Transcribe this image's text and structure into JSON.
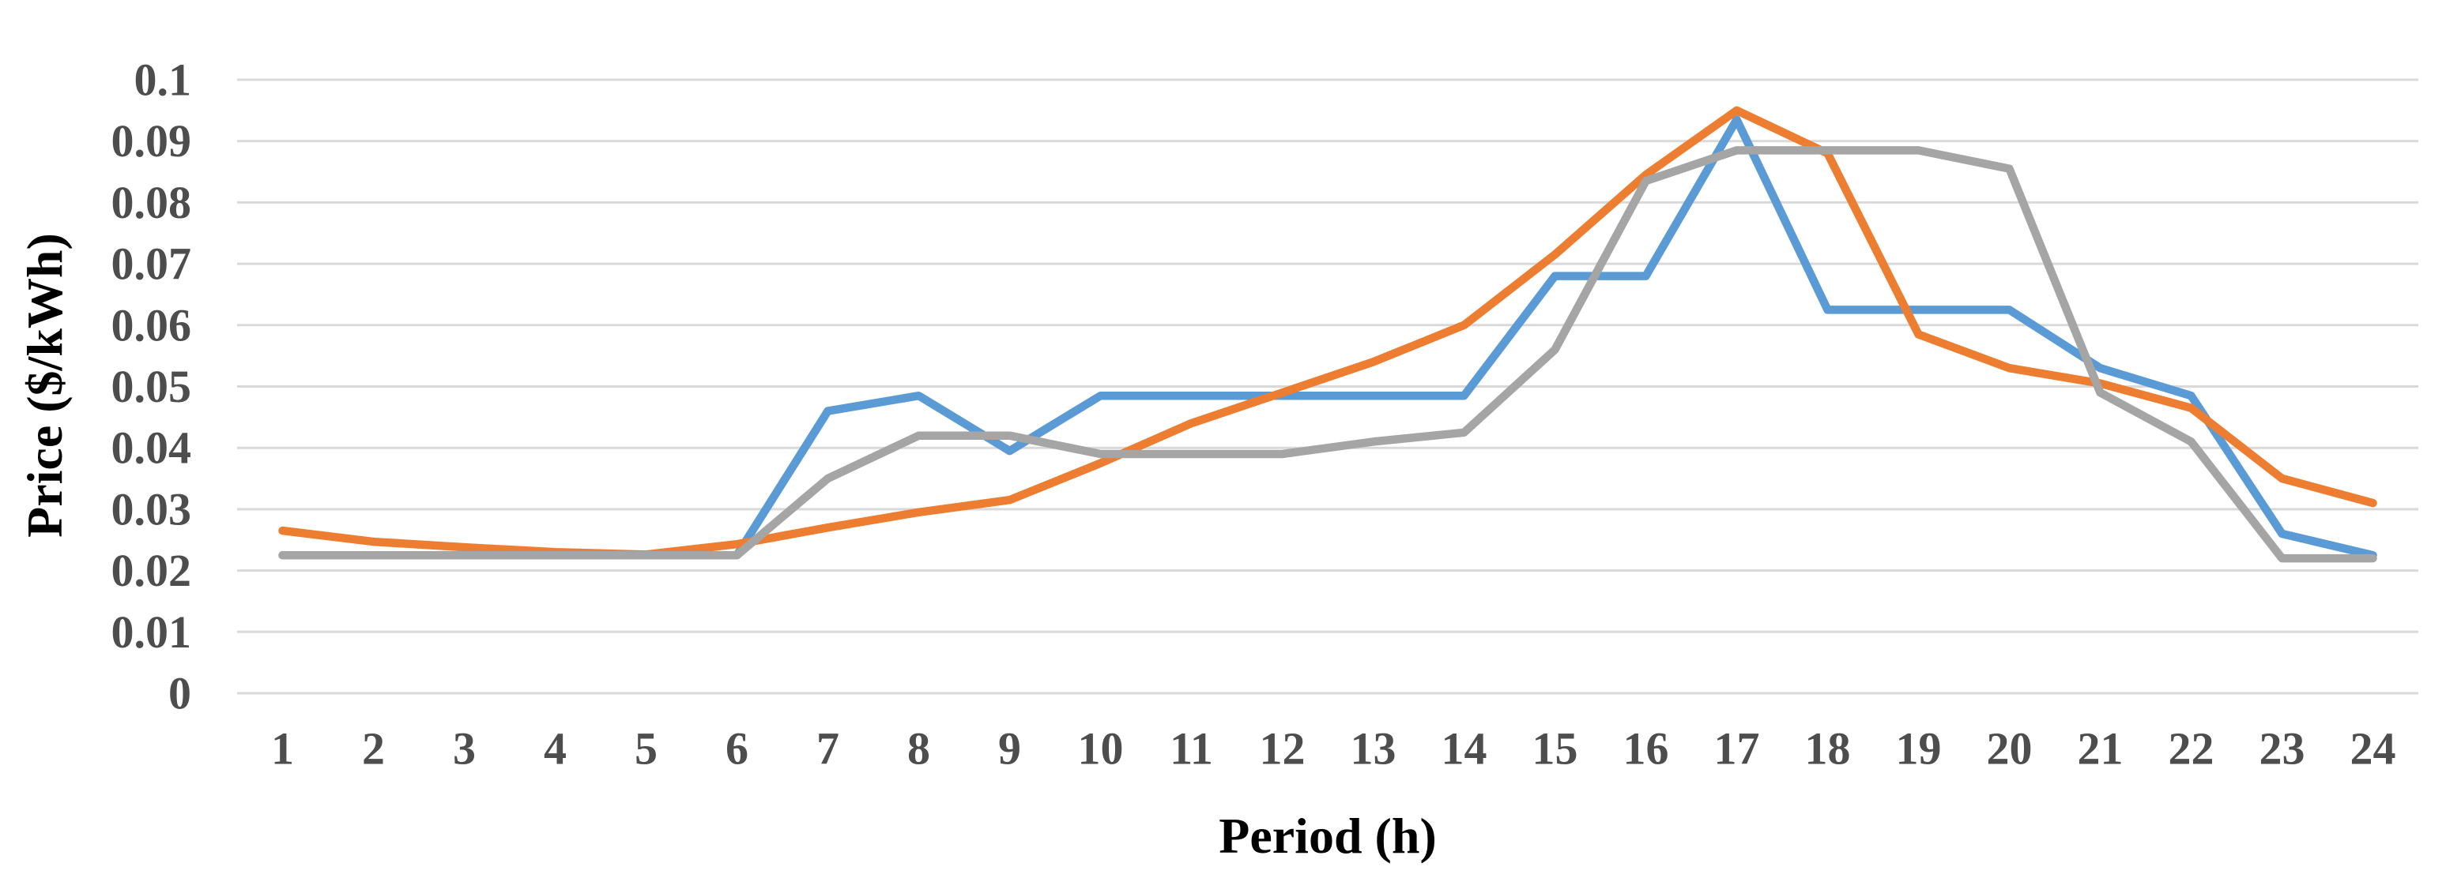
{
  "chart_data": {
    "type": "line",
    "title": "",
    "xlabel": "Period (h)",
    "ylabel": "Price ($/kWh)",
    "categories": [
      1,
      2,
      3,
      4,
      5,
      6,
      7,
      8,
      9,
      10,
      11,
      12,
      13,
      14,
      15,
      16,
      17,
      18,
      19,
      20,
      21,
      22,
      23,
      24
    ],
    "x_tick_labels": [
      "1",
      "2",
      "3",
      "4",
      "5",
      "6",
      "7",
      "8",
      "9",
      "10",
      "11",
      "12",
      "13",
      "14",
      "15",
      "16",
      "17",
      "18",
      "19",
      "20",
      "21",
      "22",
      "23",
      "24"
    ],
    "ylim": [
      0,
      0.1
    ],
    "ytick_interval": 0.01,
    "ytick_values": [
      0,
      0.01,
      0.02,
      0.03,
      0.04,
      0.05,
      0.06,
      0.07,
      0.08,
      0.09,
      0.1
    ],
    "ytick_labels": [
      "0",
      "0.01",
      "0.02",
      "0.03",
      "0.04",
      "0.05",
      "0.06",
      "0.07",
      "0.08",
      "0.09",
      "0.1"
    ],
    "grid": true,
    "legend": "none",
    "series": [
      {
        "name": "blue-series",
        "color": "#5B9BD5",
        "values": [
          0.0225,
          0.0225,
          0.0225,
          0.0225,
          0.0225,
          0.0225,
          0.046,
          0.0485,
          0.0395,
          0.0485,
          0.0485,
          0.0485,
          0.0485,
          0.0485,
          0.068,
          0.068,
          0.0935,
          0.0625,
          0.0625,
          0.0625,
          0.053,
          0.0485,
          0.026,
          0.0225
        ]
      },
      {
        "name": "orange-series",
        "color": "#ED7D31",
        "values": [
          0.0265,
          0.0247,
          0.0238,
          0.023,
          0.0226,
          0.0243,
          0.027,
          0.0295,
          0.0315,
          0.0375,
          0.044,
          0.049,
          0.054,
          0.06,
          0.0715,
          0.0845,
          0.095,
          0.088,
          0.0585,
          0.053,
          0.0505,
          0.0465,
          0.035,
          0.031
        ]
      },
      {
        "name": "gray-series",
        "color": "#A5A5A5",
        "values": [
          0.0225,
          0.0225,
          0.0225,
          0.0225,
          0.0225,
          0.0225,
          0.035,
          0.042,
          0.042,
          0.039,
          0.039,
          0.039,
          0.041,
          0.0425,
          0.056,
          0.0835,
          0.0885,
          0.0885,
          0.0885,
          0.0855,
          0.049,
          0.041,
          0.022,
          0.022
        ]
      }
    ]
  },
  "colors": {
    "background": "#FFFFFF",
    "gridline": "#D9D9D9",
    "axis_text": "#4D4D4D"
  }
}
